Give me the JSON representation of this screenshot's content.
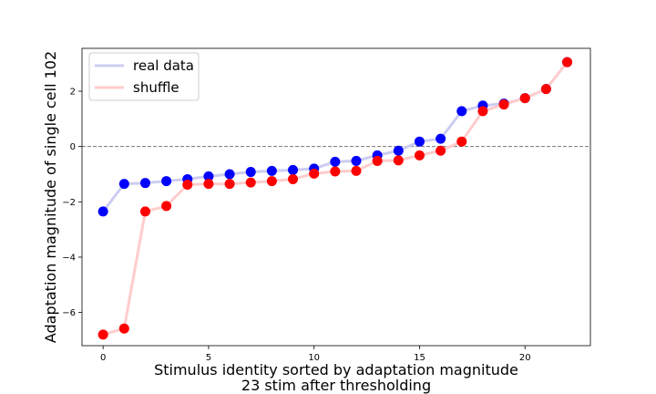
{
  "chart_data": {
    "type": "line",
    "xlabel_line1": "Stimulus identity sorted by adaptation magnitude",
    "xlabel_line2": "23 stim after thresholding",
    "ylabel": "Adaptation magnitude of single cell 102",
    "x": [
      0,
      1,
      2,
      3,
      4,
      5,
      6,
      7,
      8,
      9,
      10,
      11,
      12,
      13,
      14,
      15,
      16,
      17,
      18,
      19,
      20,
      21,
      22
    ],
    "xlim": [
      -1,
      23.1
    ],
    "ylim": [
      -7.2,
      3.55
    ],
    "xticks": [
      0,
      5,
      10,
      15,
      20
    ],
    "yticks": [
      -6,
      -4,
      -2,
      0,
      2
    ],
    "reference_line": 0,
    "legend_position": "upper-left",
    "grid": false,
    "series": [
      {
        "name": "real data",
        "line_color": "#ccccf2",
        "marker_color": "#0000ff",
        "values": [
          -2.35,
          -1.35,
          -1.32,
          -1.25,
          -1.18,
          -1.08,
          -1.0,
          -0.92,
          -0.88,
          -0.85,
          -0.8,
          -0.55,
          -0.52,
          -0.32,
          -0.15,
          0.18,
          0.28,
          1.28,
          1.48,
          1.55,
          1.75,
          2.08,
          3.05
        ]
      },
      {
        "name": "shuffle",
        "line_color": "#ffcccc",
        "marker_color": "#ff0000",
        "values": [
          -6.8,
          -6.58,
          -2.35,
          -2.15,
          -1.38,
          -1.35,
          -1.35,
          -1.3,
          -1.25,
          -1.18,
          -0.98,
          -0.9,
          -0.88,
          -0.52,
          -0.5,
          -0.32,
          -0.15,
          0.18,
          1.28,
          1.52,
          1.75,
          2.08,
          3.05
        ]
      }
    ]
  }
}
